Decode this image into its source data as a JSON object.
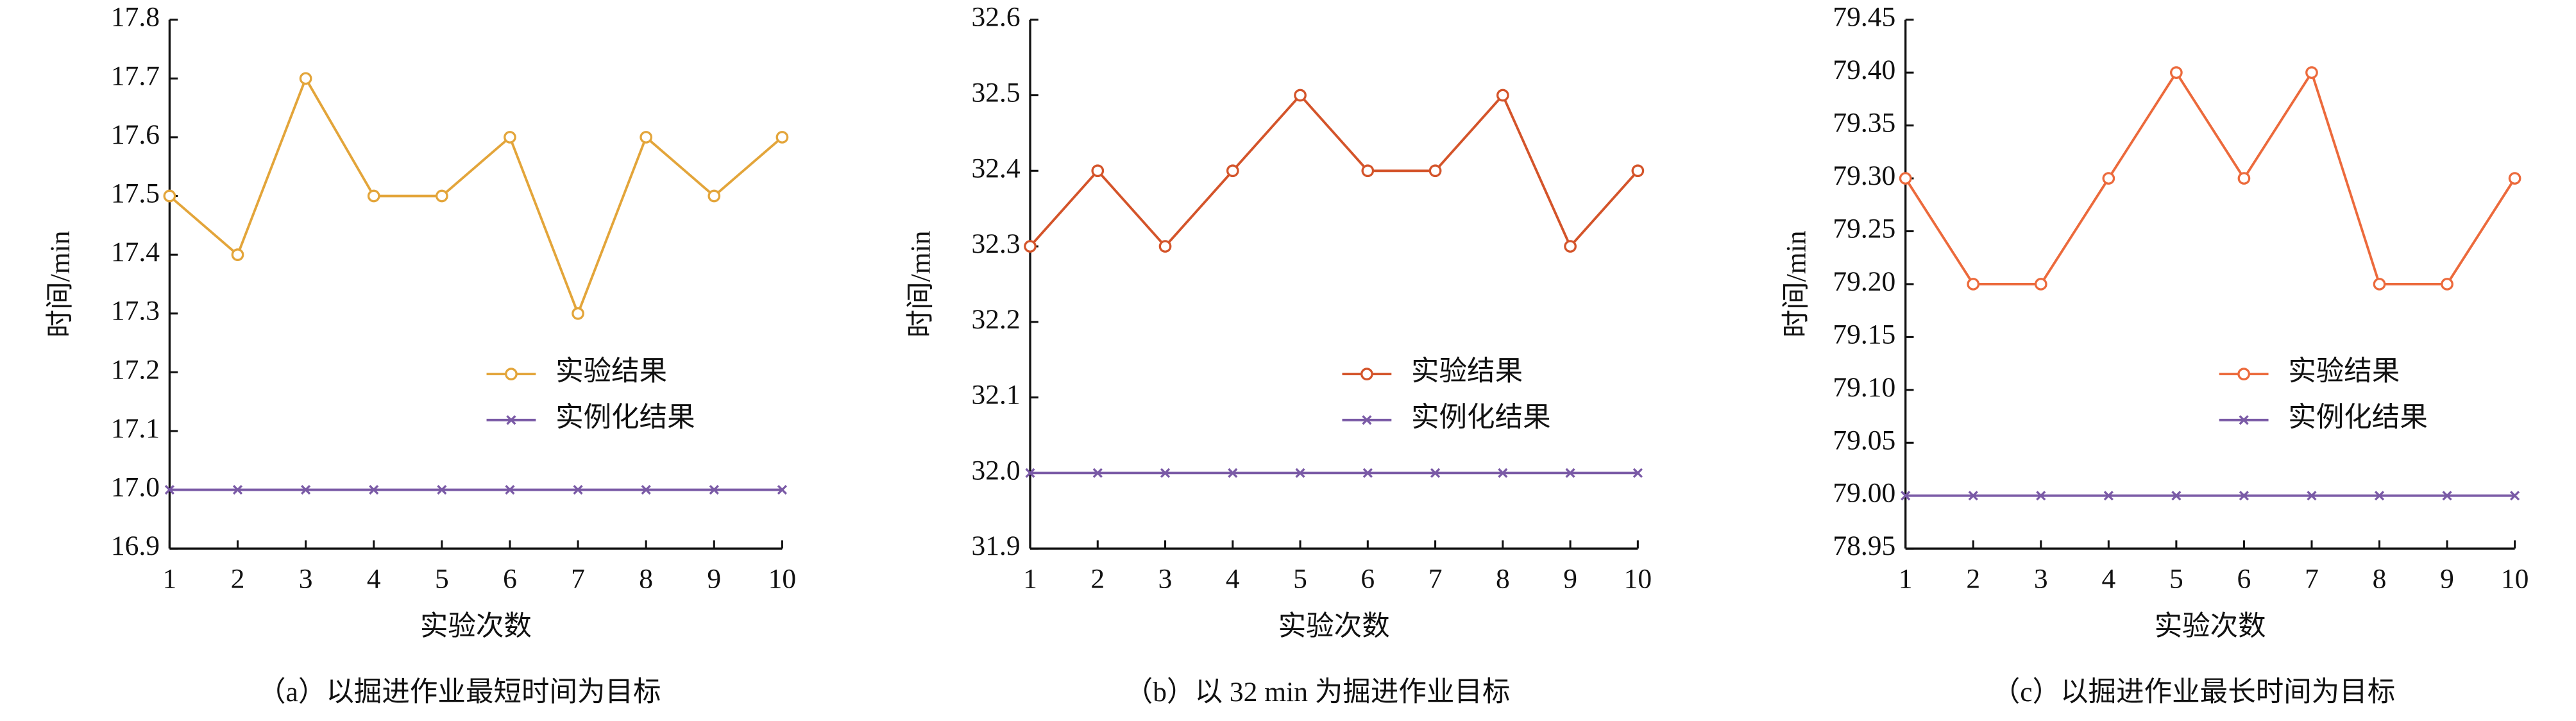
{
  "chart_data": [
    {
      "type": "line",
      "caption": "（a）以掘进作业最短时间为目标",
      "x_label": "实验次数",
      "y_label": "时间/min",
      "x": [
        1,
        2,
        3,
        4,
        5,
        6,
        7,
        8,
        9,
        10
      ],
      "xlim": [
        1,
        10
      ],
      "xticks": [
        1,
        2,
        3,
        4,
        5,
        6,
        7,
        8,
        9,
        10
      ],
      "ylim": [
        16.9,
        17.8
      ],
      "yticks": [
        16.9,
        {
          "value": 17,
          "label": "17.0"
        },
        17.1,
        17.2,
        17.3,
        17.4,
        17.5,
        17.6,
        17.7,
        17.8
      ],
      "legend": "right",
      "series": [
        {
          "name": "实验结果",
          "color": "#e3a53a",
          "marker": "circle",
          "values": [
            17.5,
            17.4,
            17.7,
            17.5,
            17.5,
            17.6,
            17.3,
            17.6,
            17.5,
            17.6
          ]
        },
        {
          "name": "实例化结果",
          "color": "#7a5aa6",
          "marker": "x",
          "values": [
            17,
            17,
            17,
            17,
            17,
            17,
            17,
            17,
            17,
            17
          ]
        }
      ]
    },
    {
      "type": "line",
      "caption": "（b）以 32 min 为掘进作业目标",
      "x_label": "实验次数",
      "y_label": "时间/min",
      "x": [
        1,
        2,
        3,
        4,
        5,
        6,
        7,
        8,
        9,
        10
      ],
      "xlim": [
        1,
        10
      ],
      "xticks": [
        1,
        2,
        3,
        4,
        5,
        6,
        7,
        8,
        9,
        10
      ],
      "ylim": [
        31.9,
        32.6
      ],
      "yticks": [
        31.9,
        {
          "value": 32,
          "label": "32.0"
        },
        32.1,
        32.2,
        32.3,
        32.4,
        32.5,
        32.6
      ],
      "legend": "right",
      "series": [
        {
          "name": "实验结果",
          "color": "#d4542a",
          "marker": "circle",
          "values": [
            32.3,
            32.4,
            32.3,
            32.4,
            32.5,
            32.4,
            32.4,
            32.5,
            32.3,
            32.4
          ]
        },
        {
          "name": "实例化结果",
          "color": "#7a5aa6",
          "marker": "x",
          "values": [
            32,
            32,
            32,
            32,
            32,
            32,
            32,
            32,
            32,
            32
          ]
        }
      ]
    },
    {
      "type": "line",
      "caption": "（c）以掘进作业最长时间为目标",
      "x_label": "实验次数",
      "y_label": "时间/min",
      "x": [
        1,
        2,
        3,
        4,
        5,
        6,
        7,
        8,
        9,
        10
      ],
      "xlim": [
        1,
        10
      ],
      "xticks": [
        1,
        2,
        3,
        4,
        5,
        6,
        7,
        8,
        9,
        10
      ],
      "ylim": [
        78.95,
        79.45
      ],
      "yticks": [
        78.95,
        {
          "value": 79,
          "label": "79.00"
        },
        79.05,
        {
          "value": 79.1,
          "label": "79.10"
        },
        79.15,
        {
          "value": 79.2,
          "label": "79.20"
        },
        79.25,
        {
          "value": 79.3,
          "label": "79.30"
        },
        79.35,
        {
          "value": 79.4,
          "label": "79.40"
        },
        79.45
      ],
      "legend": "right",
      "series": [
        {
          "name": "实验结果",
          "color": "#ec6a3c",
          "marker": "circle",
          "values": [
            79.3,
            79.2,
            79.2,
            79.3,
            79.4,
            79.3,
            79.4,
            79.2,
            79.2,
            79.3
          ]
        },
        {
          "name": "实例化结果",
          "color": "#7a5aa6",
          "marker": "x",
          "values": [
            79,
            79,
            79,
            79,
            79,
            79,
            79,
            79,
            79,
            79
          ]
        }
      ]
    }
  ]
}
